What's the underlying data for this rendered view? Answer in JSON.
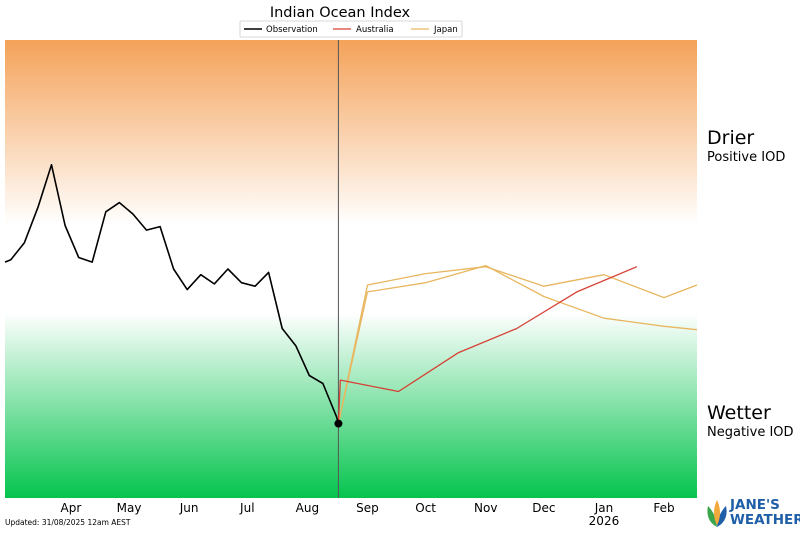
{
  "chart_data": {
    "type": "line",
    "title": "Indian Ocean Index",
    "legend": {
      "placement": "top-center",
      "entries": [
        "Observation",
        "Australia",
        "Japan"
      ]
    },
    "x_axis": {
      "ticks": [
        "Apr",
        "May",
        "Jun",
        "Jul",
        "Aug",
        "Sep",
        "Oct",
        "Nov",
        "Dec",
        "Jan",
        "Feb"
      ],
      "year_label": "2026",
      "year_label_under": "Jan",
      "range": [
        "2025-03-12",
        "2026-03-04"
      ],
      "current_date_marker": "2025-08-31"
    },
    "y_axis": {
      "visible": false,
      "ylim": [
        -2.0,
        2.0
      ]
    },
    "zones": [
      {
        "label": "Drier",
        "sublabel": "Positive IOD",
        "color": "#f4a259"
      },
      {
        "label": "Wetter",
        "sublabel": "Negative IOD",
        "color": "#05c44e"
      }
    ],
    "series": [
      {
        "name": "Observation",
        "color": "#000000",
        "points": [
          [
            "2025-03-12",
            0.06
          ],
          [
            "2025-03-15",
            0.08
          ],
          [
            "2025-03-22",
            0.23
          ],
          [
            "2025-03-29",
            0.54
          ],
          [
            "2025-04-05",
            0.91
          ],
          [
            "2025-04-12",
            0.38
          ],
          [
            "2025-04-19",
            0.1
          ],
          [
            "2025-04-26",
            0.06
          ],
          [
            "2025-05-03",
            0.5
          ],
          [
            "2025-05-10",
            0.58
          ],
          [
            "2025-05-17",
            0.48
          ],
          [
            "2025-05-24",
            0.34
          ],
          [
            "2025-05-31",
            0.37
          ],
          [
            "2025-06-07",
            0.0
          ],
          [
            "2025-06-14",
            -0.18
          ],
          [
            "2025-06-21",
            -0.05
          ],
          [
            "2025-06-28",
            -0.13
          ],
          [
            "2025-07-05",
            0.0
          ],
          [
            "2025-07-12",
            -0.12
          ],
          [
            "2025-07-19",
            -0.15
          ],
          [
            "2025-07-26",
            -0.03
          ],
          [
            "2025-08-02",
            -0.52
          ],
          [
            "2025-08-09",
            -0.67
          ],
          [
            "2025-08-16",
            -0.93
          ],
          [
            "2025-08-23",
            -1.0
          ],
          [
            "2025-08-30",
            -1.29
          ],
          [
            "2025-08-31",
            -1.35
          ]
        ]
      },
      {
        "name": "Australia",
        "color": "#d64035",
        "lines": [
          [
            [
              "2025-08-31",
              -1.35
            ],
            [
              "2025-09-01",
              -0.97
            ],
            [
              "2025-10-01",
              -1.07
            ],
            [
              "2025-11-01",
              -0.73
            ],
            [
              "2025-12-01",
              -0.52
            ],
            [
              "2026-01-01",
              -0.2
            ],
            [
              "2026-02-01",
              0.02
            ]
          ]
        ]
      },
      {
        "name": "Japan",
        "color": "#e8b65f",
        "lines": [
          [
            [
              "2025-08-31",
              -1.35
            ],
            [
              "2025-09-15",
              -0.2
            ],
            [
              "2025-10-15",
              -0.12
            ],
            [
              "2025-11-15",
              0.03
            ],
            [
              "2025-12-15",
              -0.24
            ],
            [
              "2026-01-15",
              -0.43
            ],
            [
              "2026-02-15",
              -0.5
            ],
            [
              "2026-03-04",
              -0.53
            ]
          ],
          [
            [
              "2025-08-31",
              -1.35
            ],
            [
              "2025-09-15",
              -0.14
            ],
            [
              "2025-10-15",
              -0.04
            ],
            [
              "2025-11-15",
              0.02
            ],
            [
              "2025-12-15",
              -0.15
            ],
            [
              "2026-01-15",
              -0.05
            ],
            [
              "2026-02-15",
              -0.25
            ],
            [
              "2026-03-04",
              -0.14
            ]
          ]
        ]
      }
    ]
  },
  "footer": {
    "updated": "Updated: 31/08/2025 12am AEST"
  },
  "brand": {
    "line1": "JANE'S",
    "line2": "WEATHER",
    "icon": "leaf-icon"
  }
}
